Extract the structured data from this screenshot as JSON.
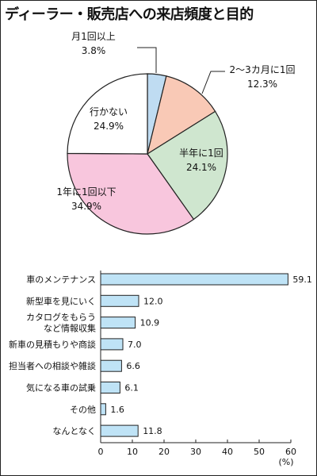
{
  "title": "ディーラー・販売店への来店頻度と目的",
  "chart_data": [
    {
      "type": "pie",
      "slices": [
        {
          "label": "月1回以上",
          "value": 3.8,
          "display": "3.8%",
          "color": "#bfdcf2"
        },
        {
          "label": "2～3カ月に1回",
          "value": 12.3,
          "display": "12.3%",
          "color": "#f9c9b6"
        },
        {
          "label": "半年に1回",
          "value": 24.1,
          "display": "24.1%",
          "color": "#cfe6cf"
        },
        {
          "label": "1年に1回以下",
          "value": 34.9,
          "display": "34.9%",
          "color": "#f8c6dd"
        },
        {
          "label": "行かない",
          "value": 24.9,
          "display": "24.9%",
          "color": "#ffffff"
        }
      ]
    },
    {
      "type": "bar",
      "orientation": "horizontal",
      "categories": [
        "車のメンテナンス",
        "新型車を見にいく",
        "カタログをもらう\nなど情報収集",
        "新車の見積もりや商談",
        "担当者への相談や雑談",
        "気になる車の試乗",
        "その他",
        "なんとなく"
      ],
      "values": [
        59.1,
        12.0,
        10.9,
        7.0,
        6.6,
        6.1,
        1.6,
        11.8
      ],
      "value_labels": [
        "59.1",
        "12.0",
        "10.9",
        "7.0",
        "6.6",
        "6.1",
        "1.6",
        "11.8"
      ],
      "xlim": [
        0,
        60
      ],
      "ticks": [
        "0",
        "10",
        "20",
        "30",
        "40",
        "50",
        "60"
      ],
      "unit": "(%)",
      "bar_color": "#bfe3f6"
    }
  ]
}
